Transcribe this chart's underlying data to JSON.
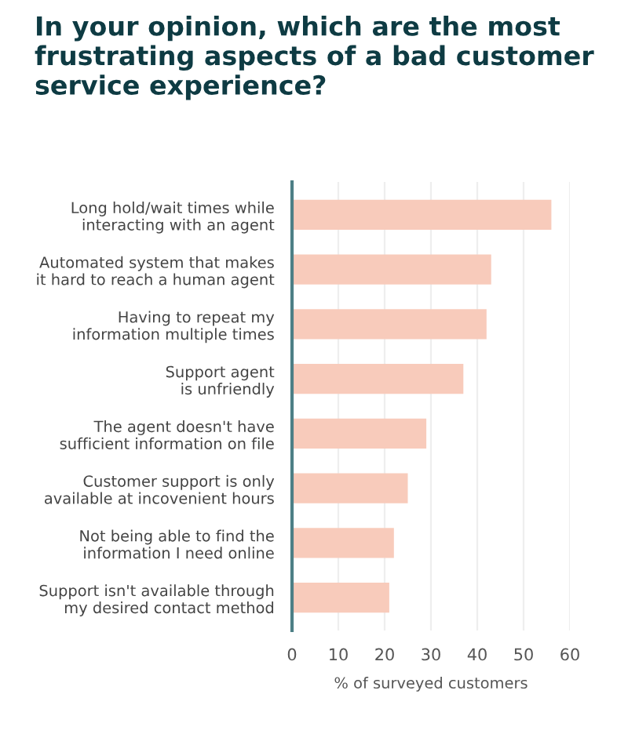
{
  "chart_data": {
    "type": "bar",
    "orientation": "horizontal",
    "title": "In your opinion, which are the most\nfrustrating aspects of a bad customer\nservice experience?",
    "categories": [
      "Long hold/wait times while\ninteracting with an agent",
      "Automated system that makes\nit hard to reach a human agent",
      "Having to repeat my\ninformation multiple times",
      "Support agent\nis unfriendly",
      "The agent doesn't have\nsufficient information on file",
      "Customer support is only\navailable at incovenient hours",
      "Not being able to find the\ninformation I need online",
      "Support isn't available through\nmy desired contact method"
    ],
    "values": [
      56,
      43,
      42,
      37,
      29,
      25,
      22,
      21
    ],
    "color": "#f8cbbb",
    "xlabel": "% of surveyed customers",
    "xlim": [
      0,
      60
    ],
    "xticks": [
      0,
      10,
      20,
      30,
      40,
      50,
      60
    ],
    "grid": "x",
    "legend": false
  }
}
